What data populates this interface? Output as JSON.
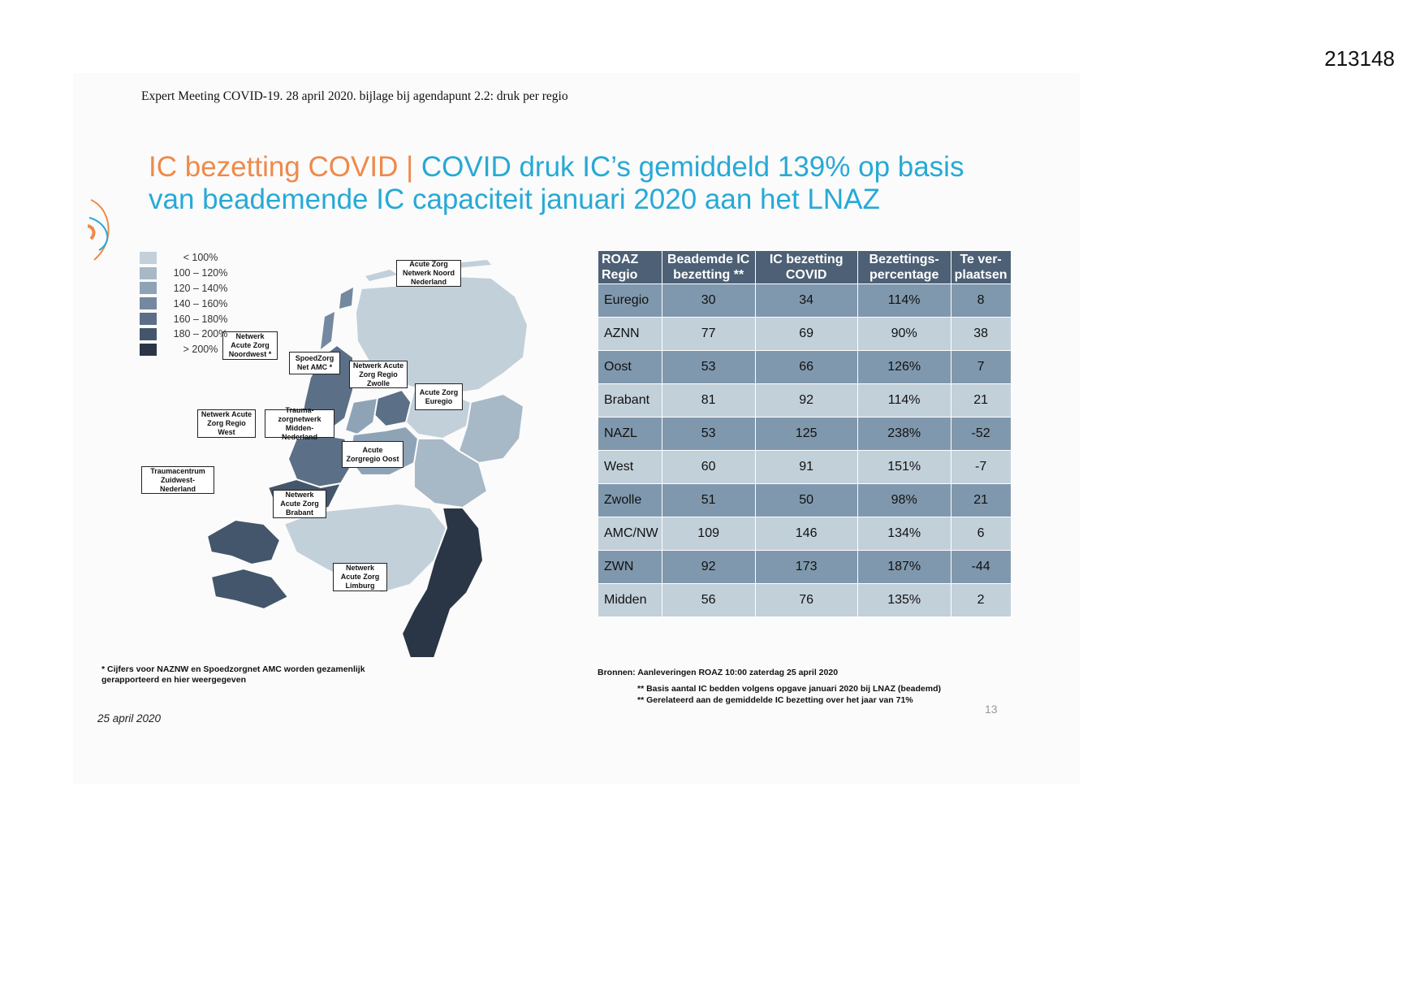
{
  "doc_id": "213148",
  "caption": "Expert Meeting COVID-19. 28 april 2020. bijlage bij agendapunt 2.2: druk per regio",
  "title": {
    "part1": "IC bezetting COVID | ",
    "part2": "COVID druk IC’s gemiddeld 139% op basis van beademende IC capaciteit januari 2020 aan het LNAZ"
  },
  "legend": [
    {
      "label": "< 100%",
      "color": "#c2d0da"
    },
    {
      "label": "100 – 120%",
      "color": "#a7b8c7"
    },
    {
      "label": "120 – 140%",
      "color": "#8ea3b6"
    },
    {
      "label": "140 – 160%",
      "color": "#74899f"
    },
    {
      "label": "160 – 180%",
      "color": "#5b6f86"
    },
    {
      "label": "180 – 200%",
      "color": "#44566b"
    },
    {
      "label": "> 200%",
      "color": "#2a3645"
    }
  ],
  "map_labels": {
    "noord": "Acute Zorg Netwerk Noord Nederland",
    "noordwest": "Netwerk Acute Zorg Noordwest *",
    "amc": "SpoedZorg Net AMC *",
    "zwolle": "Netwerk Acute Zorg Regio Zwolle",
    "euregio": "Acute Zorg Euregio",
    "west": "Netwerk Acute Zorg Regio West",
    "midden": "Trauma-zorgnetwerk Midden-Nederland",
    "oost": "Acute Zorgregio Oost",
    "zuidwest": "Traumacentrum Zuidwest-Nederland",
    "brabant": "Netwerk Acute Zorg Brabant",
    "limburg": "Netwerk Acute Zorg Limburg"
  },
  "table": {
    "headers": [
      "ROAZ Regio",
      "Beademde IC bezetting **",
      "IC bezetting COVID",
      "Bezettings-percentage",
      "Te ver-plaatsen"
    ],
    "rows": [
      [
        "Euregio",
        "30",
        "34",
        "114%",
        "8"
      ],
      [
        "AZNN",
        "77",
        "69",
        "90%",
        "38"
      ],
      [
        "Oost",
        "53",
        "66",
        "126%",
        "7"
      ],
      [
        "Brabant",
        "81",
        "92",
        "114%",
        "21"
      ],
      [
        "NAZL",
        "53",
        "125",
        "238%",
        "-52"
      ],
      [
        "West",
        "60",
        "91",
        "151%",
        "-7"
      ],
      [
        "Zwolle",
        "51",
        "50",
        "98%",
        "21"
      ],
      [
        "AMC/NW",
        "109",
        "146",
        "134%",
        "6"
      ],
      [
        "ZWN",
        "92",
        "173",
        "187%",
        "-44"
      ],
      [
        "Midden",
        "56",
        "76",
        "135%",
        "2"
      ]
    ]
  },
  "footnote": "* Cijfers voor NAZNW en Spoedzorgnet AMC worden gezamenlijk gerapporteerd en hier weergegeven",
  "date": "25 april 2020",
  "sources": "Bronnen: Aanleveringen ROAZ 10:00 zaterdag 25 april 2020",
  "notes": [
    "** Basis aantal IC bedden volgens opgave januari 2020 bij LNAZ (beademd)",
    "** Gerelateerd aan de gemiddelde IC bezetting over het jaar van 71%"
  ],
  "page_number": "13"
}
